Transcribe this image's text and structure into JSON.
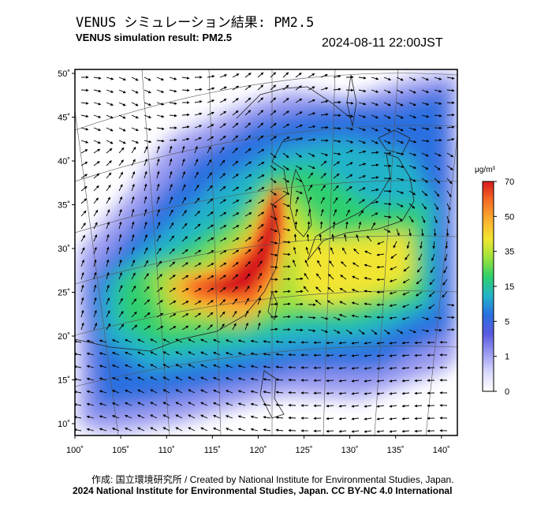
{
  "header": {
    "title_ja": "VENUS シミュレーション結果: PM2.5",
    "title_en": "VENUS simulation result: PM2.5",
    "timestamp": "2024-08-11 22:00JST"
  },
  "map": {
    "lat_labels": [
      "50˚",
      "45˚",
      "40˚",
      "35˚",
      "30˚",
      "25˚",
      "20˚",
      "15˚",
      "10˚"
    ],
    "lon_labels": [
      "100˚",
      "105˚",
      "110˚",
      "115˚",
      "120˚",
      "125˚",
      "130˚",
      "135˚",
      "140˚"
    ],
    "lat_range": [
      10,
      50
    ],
    "lon_range": [
      100,
      140
    ],
    "features": {
      "hotspot_east_china_coast": {
        "level": 60
      },
      "hotspot_central_china": {
        "level": 55
      },
      "japan_sea_band": {
        "level": 25
      }
    }
  },
  "colorbar": {
    "unit": "μg/m³",
    "tick_labels": [
      "70",
      "50",
      "35",
      "15",
      "5",
      "1",
      "0"
    ],
    "colors": [
      "#d7191c",
      "#f46d23",
      "#fdae2f",
      "#f2e531",
      "#9be33a",
      "#2fcf6d",
      "#22b3c9",
      "#2a6fe0",
      "#5a5ae0",
      "#9a9af0",
      "#d9d9ff",
      "#ffffff"
    ]
  },
  "footer": {
    "credit": "作成: 国立環境研究所 / Created by National Institute for Environmental Studies, Japan.",
    "license": "2024 National Institute for Environmental Studies, Japan. CC BY-NC 4.0 International"
  }
}
